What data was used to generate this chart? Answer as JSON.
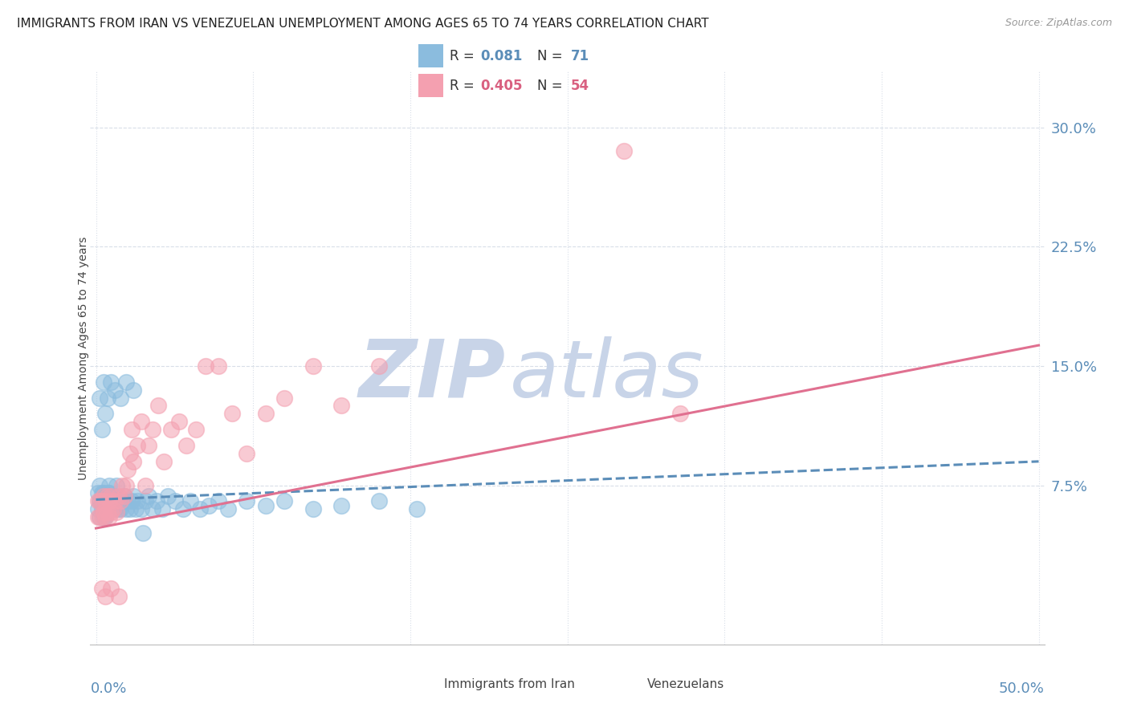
{
  "title": "IMMIGRANTS FROM IRAN VS VENEZUELAN UNEMPLOYMENT AMONG AGES 65 TO 74 YEARS CORRELATION CHART",
  "source": "Source: ZipAtlas.com",
  "ylabel": "Unemployment Among Ages 65 to 74 years",
  "ytick_values": [
    0.075,
    0.15,
    0.225,
    0.3
  ],
  "ytick_labels": [
    "7.5%",
    "15.0%",
    "22.5%",
    "30.0%"
  ],
  "xlim": [
    -0.003,
    0.503
  ],
  "ylim": [
    -0.025,
    0.335
  ],
  "iran_color": "#8BBCDE",
  "venezuela_color": "#F4A0B0",
  "iran_R": "0.081",
  "iran_N": "71",
  "venezuela_R": "0.405",
  "venezuela_N": "54",
  "watermark_zip_color": "#C8D4E8",
  "watermark_atlas_color": "#C8D4E8",
  "grid_color": "#D8DEE8",
  "background_color": "#FFFFFF",
  "iran_x": [
    0.001,
    0.001,
    0.002,
    0.002,
    0.002,
    0.003,
    0.003,
    0.003,
    0.004,
    0.004,
    0.004,
    0.005,
    0.005,
    0.005,
    0.006,
    0.006,
    0.006,
    0.007,
    0.007,
    0.007,
    0.008,
    0.008,
    0.009,
    0.009,
    0.01,
    0.01,
    0.011,
    0.012,
    0.012,
    0.013,
    0.014,
    0.015,
    0.016,
    0.017,
    0.018,
    0.019,
    0.02,
    0.021,
    0.022,
    0.024,
    0.026,
    0.028,
    0.03,
    0.032,
    0.035,
    0.038,
    0.042,
    0.046,
    0.05,
    0.055,
    0.06,
    0.065,
    0.07,
    0.08,
    0.09,
    0.1,
    0.115,
    0.13,
    0.15,
    0.17,
    0.002,
    0.003,
    0.004,
    0.005,
    0.006,
    0.008,
    0.01,
    0.013,
    0.016,
    0.02,
    0.025
  ],
  "iran_y": [
    0.06,
    0.07,
    0.055,
    0.065,
    0.075,
    0.06,
    0.065,
    0.07,
    0.055,
    0.065,
    0.07,
    0.06,
    0.065,
    0.055,
    0.06,
    0.07,
    0.065,
    0.06,
    0.07,
    0.075,
    0.06,
    0.065,
    0.06,
    0.065,
    0.06,
    0.068,
    0.075,
    0.06,
    0.065,
    0.06,
    0.065,
    0.068,
    0.06,
    0.065,
    0.06,
    0.065,
    0.068,
    0.06,
    0.065,
    0.06,
    0.065,
    0.068,
    0.06,
    0.065,
    0.06,
    0.068,
    0.065,
    0.06,
    0.065,
    0.06,
    0.062,
    0.065,
    0.06,
    0.065,
    0.062,
    0.065,
    0.06,
    0.062,
    0.065,
    0.06,
    0.13,
    0.11,
    0.14,
    0.12,
    0.13,
    0.14,
    0.135,
    0.13,
    0.14,
    0.135,
    0.045
  ],
  "venezuela_x": [
    0.001,
    0.001,
    0.002,
    0.002,
    0.003,
    0.003,
    0.004,
    0.004,
    0.005,
    0.005,
    0.006,
    0.006,
    0.007,
    0.007,
    0.008,
    0.008,
    0.009,
    0.01,
    0.011,
    0.012,
    0.013,
    0.014,
    0.015,
    0.016,
    0.017,
    0.018,
    0.019,
    0.02,
    0.022,
    0.024,
    0.026,
    0.028,
    0.03,
    0.033,
    0.036,
    0.04,
    0.044,
    0.048,
    0.053,
    0.058,
    0.065,
    0.072,
    0.08,
    0.09,
    0.1,
    0.115,
    0.13,
    0.15,
    0.28,
    0.31,
    0.003,
    0.005,
    0.008,
    0.012
  ],
  "venezuela_y": [
    0.055,
    0.065,
    0.055,
    0.065,
    0.055,
    0.065,
    0.058,
    0.068,
    0.055,
    0.065,
    0.058,
    0.068,
    0.055,
    0.065,
    0.058,
    0.068,
    0.06,
    0.065,
    0.058,
    0.068,
    0.065,
    0.075,
    0.068,
    0.075,
    0.085,
    0.095,
    0.11,
    0.09,
    0.1,
    0.115,
    0.075,
    0.1,
    0.11,
    0.125,
    0.09,
    0.11,
    0.115,
    0.1,
    0.11,
    0.15,
    0.15,
    0.12,
    0.095,
    0.12,
    0.13,
    0.15,
    0.125,
    0.15,
    0.285,
    0.12,
    0.01,
    0.005,
    0.01,
    0.005
  ],
  "iran_trend_x": [
    0.0,
    0.5
  ],
  "iran_trend_y": [
    0.066,
    0.09
  ],
  "venezuela_trend_x": [
    0.0,
    0.5
  ],
  "venezuela_trend_y": [
    0.048,
    0.163
  ],
  "title_color": "#222222",
  "source_color": "#999999",
  "label_color": "#5B8DB8",
  "legend_R_color_iran": "#5B8DB8",
  "legend_N_color_iran": "#5B8DB8",
  "legend_R_color_venezuela": "#D96080",
  "legend_N_color_venezuela": "#D96080"
}
